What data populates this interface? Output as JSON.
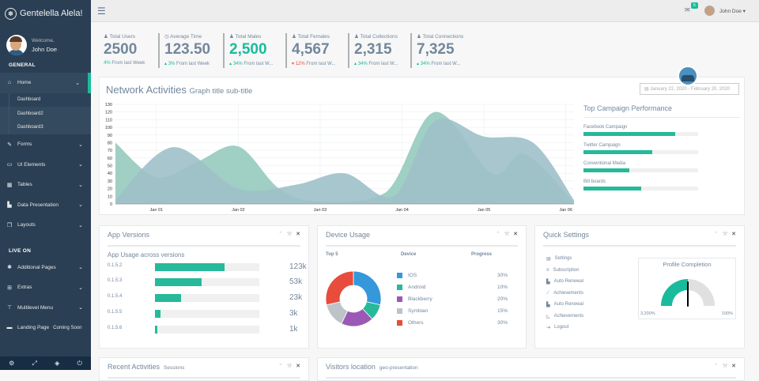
{
  "brand": {
    "title": "Gentelella Alela!",
    "logo_icon": "paw-icon"
  },
  "profile": {
    "welcome": "Welcome,",
    "name": "John Doe"
  },
  "sidebar": {
    "general_label": "GENERAL",
    "items": [
      {
        "label": "Home",
        "icon": "home-icon"
      },
      {
        "label": "Forms",
        "icon": "edit-icon"
      },
      {
        "label": "UI Elements",
        "icon": "desktop-icon"
      },
      {
        "label": "Tables",
        "icon": "table-icon"
      },
      {
        "label": "Data Presentation",
        "icon": "bar-chart-icon"
      },
      {
        "label": "Layouts",
        "icon": "clone-icon"
      }
    ],
    "home_sub": [
      "Dashboard",
      "Dashboard2",
      "Dashboard3"
    ],
    "live_label": "LIVE ON",
    "live_items": [
      {
        "label": "Additional Pages",
        "icon": "bug-icon"
      },
      {
        "label": "Extras",
        "icon": "windows-icon"
      },
      {
        "label": "Multilevel Menu",
        "icon": "sitemap-icon"
      },
      {
        "label": "Landing Page",
        "icon": "laptop-icon",
        "extra": "Coming Soon"
      }
    ],
    "footer_icons": [
      "settings-icon",
      "fullscreen-icon",
      "lock-icon",
      "logout-icon"
    ]
  },
  "topbar": {
    "user": "John Doe",
    "mail_count": "6"
  },
  "tiles": [
    {
      "label": "Total Users",
      "count": "2500",
      "pct": "4%",
      "dir": "up",
      "rest": "From last Week",
      "highlight": false
    },
    {
      "label": "Average Time",
      "count": "123.50",
      "pct": "3%",
      "dir": "up",
      "rest": "From last Week",
      "highlight": false
    },
    {
      "label": "Total Males",
      "count": "2,500",
      "pct": "34%",
      "dir": "up",
      "rest": "From last W...",
      "highlight": true
    },
    {
      "label": "Total Females",
      "count": "4,567",
      "pct": "12%",
      "dir": "down",
      "rest": "From last W...",
      "highlight": false
    },
    {
      "label": "Total Collections",
      "count": "2,315",
      "pct": "34%",
      "dir": "up",
      "rest": "From last W...",
      "highlight": false
    },
    {
      "label": "Total Connections",
      "count": "7,325",
      "pct": "34%",
      "dir": "up",
      "rest": "From last W...",
      "highlight": false
    }
  ],
  "main": {
    "title": "Network Activities",
    "subtitle": "Graph title sub-title",
    "daterange": "January 22, 2020 - February 20, 2020"
  },
  "chart_data": {
    "type": "area",
    "title": "Network Activities",
    "x": [
      "Jan 01",
      "Jan 02",
      "Jan 03",
      "Jan 04",
      "Jan 05",
      "Jan 06"
    ],
    "ylim": [
      0,
      130
    ],
    "yticks": [
      0,
      10,
      20,
      30,
      40,
      50,
      60,
      70,
      80,
      90,
      100,
      110,
      120,
      130
    ],
    "grid": true,
    "series": [
      {
        "color": "#96cabe",
        "points": [
          [
            0,
            80
          ],
          [
            0.5,
            35
          ],
          [
            1,
            55
          ],
          [
            1.5,
            75
          ],
          [
            2,
            20
          ],
          [
            2.5,
            3
          ],
          [
            3.3,
            15
          ],
          [
            3.9,
            120
          ],
          [
            4.6,
            40
          ],
          [
            5,
            65
          ],
          [
            5.6,
            2
          ]
        ]
      },
      {
        "color": "#9ec0c9",
        "points": [
          [
            0,
            5
          ],
          [
            0.7,
            74
          ],
          [
            1.5,
            20
          ],
          [
            2.2,
            25
          ],
          [
            2.8,
            40
          ],
          [
            3.4,
            10
          ],
          [
            3.9,
            108
          ],
          [
            4.5,
            88
          ],
          [
            5.1,
            80
          ],
          [
            5.6,
            5
          ]
        ]
      }
    ]
  },
  "campaign": {
    "title": "Top Campaign Performance",
    "items": [
      {
        "label": "Facebook Campaign",
        "value": 80
      },
      {
        "label": "Twitter Campaign",
        "value": 60
      },
      {
        "label": "Conventional Media",
        "value": 40
      },
      {
        "label": "Bill boards",
        "value": 50
      }
    ]
  },
  "app_versions": {
    "title": "App Versions",
    "subtitle": "App Usage across versions",
    "rows": [
      {
        "name": "0.1.5.2",
        "pct": 67,
        "value": "123k"
      },
      {
        "name": "0.1.5.3",
        "pct": 45,
        "value": "53k"
      },
      {
        "name": "0.1.5.4",
        "pct": 25,
        "value": "23k"
      },
      {
        "name": "0.1.5.5",
        "pct": 5,
        "value": "3k"
      },
      {
        "name": "0.1.5.6",
        "pct": 2,
        "value": "1k"
      }
    ]
  },
  "device_usage": {
    "title": "Device Usage",
    "col_top": "Top 5",
    "col_device": "Device",
    "col_progress": "Progress",
    "rows": [
      {
        "name": "IOS",
        "pct": "30%",
        "value": 30,
        "color": "#3498db"
      },
      {
        "name": "Android",
        "pct": "10%",
        "value": 10,
        "color": "#26b99a"
      },
      {
        "name": "Blackberry",
        "pct": "20%",
        "value": 20,
        "color": "#9b59b6"
      },
      {
        "name": "Symbian",
        "pct": "15%",
        "value": 15,
        "color": "#bdc3c7"
      },
      {
        "name": "Others",
        "pct": "30%",
        "value": 30,
        "color": "#e74c3c"
      }
    ]
  },
  "quick_settings": {
    "title": "Quick Settings",
    "items": [
      {
        "label": "Settings",
        "icon": "calendar-icon"
      },
      {
        "label": "Subscription",
        "icon": "bars-icon"
      },
      {
        "label": "Auto Renewal",
        "icon": "bar-chart-icon"
      },
      {
        "label": "Achievements",
        "icon": "line-chart-icon"
      },
      {
        "label": "Auto Renewal",
        "icon": "bar-chart-icon"
      },
      {
        "label": "Achievements",
        "icon": "area-chart-icon"
      },
      {
        "label": "Logout",
        "icon": "signout-icon"
      }
    ],
    "gauge_title": "Profile Completion",
    "gauge_min": "3,200%",
    "gauge_max": "100%",
    "gauge_fraction": 0.5
  },
  "recent": {
    "title": "Recent Activities",
    "sub": "Sessions"
  },
  "visitors": {
    "title": "Visitors location",
    "sub": "geo-presentation"
  }
}
